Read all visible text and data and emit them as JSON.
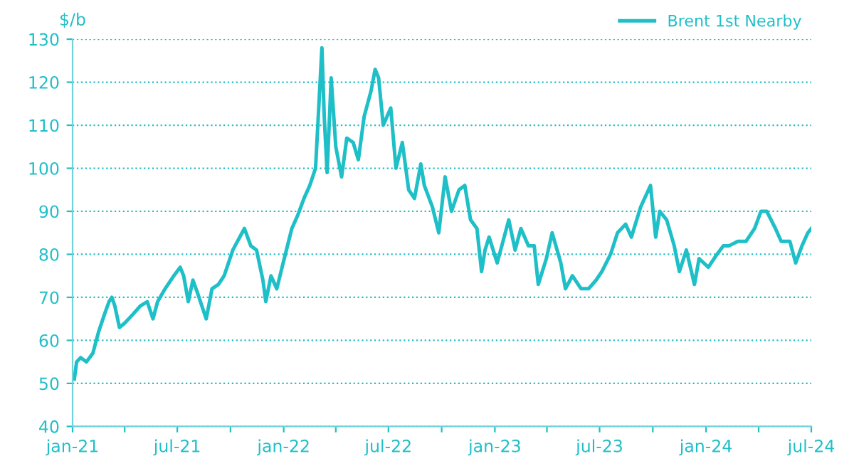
{
  "chart_data": {
    "type": "line",
    "ylabel": "$/b",
    "legend": "top right",
    "grid": "y",
    "line_style": "solid",
    "marker": "none",
    "xlim": [
      "2021-01-01",
      "2024-07-01"
    ],
    "xticks": [
      {
        "value": "2021-01-01",
        "label": "jan-21"
      },
      {
        "value": "2021-04-01",
        "label": null
      },
      {
        "value": "2021-07-01",
        "label": "jul-21"
      },
      {
        "value": "2021-10-01",
        "label": null
      },
      {
        "value": "2022-01-01",
        "label": "jan-22"
      },
      {
        "value": "2022-04-01",
        "label": null
      },
      {
        "value": "2022-07-01",
        "label": "jul-22"
      },
      {
        "value": "2022-10-01",
        "label": null
      },
      {
        "value": "2023-01-01",
        "label": "jan-23"
      },
      {
        "value": "2023-04-01",
        "label": null
      },
      {
        "value": "2023-07-01",
        "label": "jul-23"
      },
      {
        "value": "2023-10-01",
        "label": null
      },
      {
        "value": "2024-01-01",
        "label": "jan-24"
      },
      {
        "value": "2024-04-01",
        "label": null
      },
      {
        "value": "2024-07-01",
        "label": "jul-24"
      }
    ],
    "ylim": [
      40,
      130
    ],
    "yticks": [
      40,
      50,
      60,
      70,
      80,
      90,
      100,
      110,
      120,
      130
    ],
    "series": [
      {
        "name": "Brent 1st Nearby",
        "color": "#1fbfc8",
        "x": [
          "2021-01-04",
          "2021-01-08",
          "2021-01-15",
          "2021-01-25",
          "2021-02-05",
          "2021-02-15",
          "2021-02-25",
          "2021-03-05",
          "2021-03-10",
          "2021-03-15",
          "2021-03-23",
          "2021-04-01",
          "2021-04-15",
          "2021-04-28",
          "2021-05-10",
          "2021-05-20",
          "2021-05-28",
          "2021-06-10",
          "2021-06-25",
          "2021-07-06",
          "2021-07-12",
          "2021-07-20",
          "2021-07-28",
          "2021-08-05",
          "2021-08-20",
          "2021-08-30",
          "2021-09-10",
          "2021-09-20",
          "2021-10-05",
          "2021-10-25",
          "2021-11-05",
          "2021-11-15",
          "2021-11-26",
          "2021-12-01",
          "2021-12-10",
          "2021-12-20",
          "2021-12-31",
          "2022-01-15",
          "2022-01-25",
          "2022-02-05",
          "2022-02-15",
          "2022-02-25",
          "2022-03-08",
          "2022-03-12",
          "2022-03-17",
          "2022-03-24",
          "2022-04-01",
          "2022-04-11",
          "2022-04-20",
          "2022-05-01",
          "2022-05-10",
          "2022-05-20",
          "2022-06-01",
          "2022-06-08",
          "2022-06-14",
          "2022-06-22",
          "2022-07-05",
          "2022-07-14",
          "2022-07-25",
          "2022-08-05",
          "2022-08-15",
          "2022-08-26",
          "2022-09-01",
          "2022-09-15",
          "2022-09-26",
          "2022-10-07",
          "2022-10-18",
          "2022-10-31",
          "2022-11-10",
          "2022-11-20",
          "2022-12-01",
          "2022-12-09",
          "2022-12-15",
          "2022-12-22",
          "2023-01-05",
          "2023-01-15",
          "2023-01-25",
          "2023-02-05",
          "2023-02-15",
          "2023-02-28",
          "2023-03-10",
          "2023-03-17",
          "2023-03-31",
          "2023-04-10",
          "2023-04-25",
          "2023-05-03",
          "2023-05-15",
          "2023-05-30",
          "2023-06-12",
          "2023-06-25",
          "2023-07-05",
          "2023-07-20",
          "2023-08-01",
          "2023-08-15",
          "2023-08-25",
          "2023-09-10",
          "2023-09-27",
          "2023-10-06",
          "2023-10-13",
          "2023-10-25",
          "2023-11-07",
          "2023-11-16",
          "2023-11-28",
          "2023-12-12",
          "2023-12-20",
          "2024-01-05",
          "2024-01-20",
          "2024-01-31",
          "2024-02-10",
          "2024-02-25",
          "2024-03-10",
          "2024-03-25",
          "2024-04-05",
          "2024-04-15",
          "2024-04-30",
          "2024-05-10",
          "2024-05-25",
          "2024-06-04",
          "2024-06-15",
          "2024-06-25",
          "2024-07-01"
        ],
        "values": [
          51,
          55,
          56,
          55,
          57,
          62,
          66,
          69,
          70,
          68,
          63,
          64,
          66,
          68,
          69,
          65,
          69,
          72,
          75,
          77,
          75,
          69,
          74,
          71,
          65,
          72,
          73,
          75,
          81,
          86,
          82,
          81,
          74,
          69,
          75,
          72,
          78,
          86,
          89,
          93,
          96,
          100,
          128,
          112,
          99,
          121,
          105,
          98,
          107,
          106,
          102,
          112,
          118,
          123,
          121,
          110,
          114,
          100,
          106,
          95,
          93,
          101,
          96,
          91,
          85,
          98,
          90,
          95,
          96,
          88,
          86,
          76,
          81,
          84,
          78,
          83,
          88,
          81,
          86,
          82,
          82,
          73,
          79,
          85,
          78,
          72,
          75,
          72,
          72,
          74,
          76,
          80,
          85,
          87,
          84,
          91,
          96,
          84,
          90,
          88,
          82,
          76,
          81,
          73,
          79,
          77,
          80,
          82,
          82,
          83,
          83,
          86,
          90,
          90,
          86,
          83,
          83,
          78,
          82,
          85,
          86
        ]
      }
    ]
  }
}
